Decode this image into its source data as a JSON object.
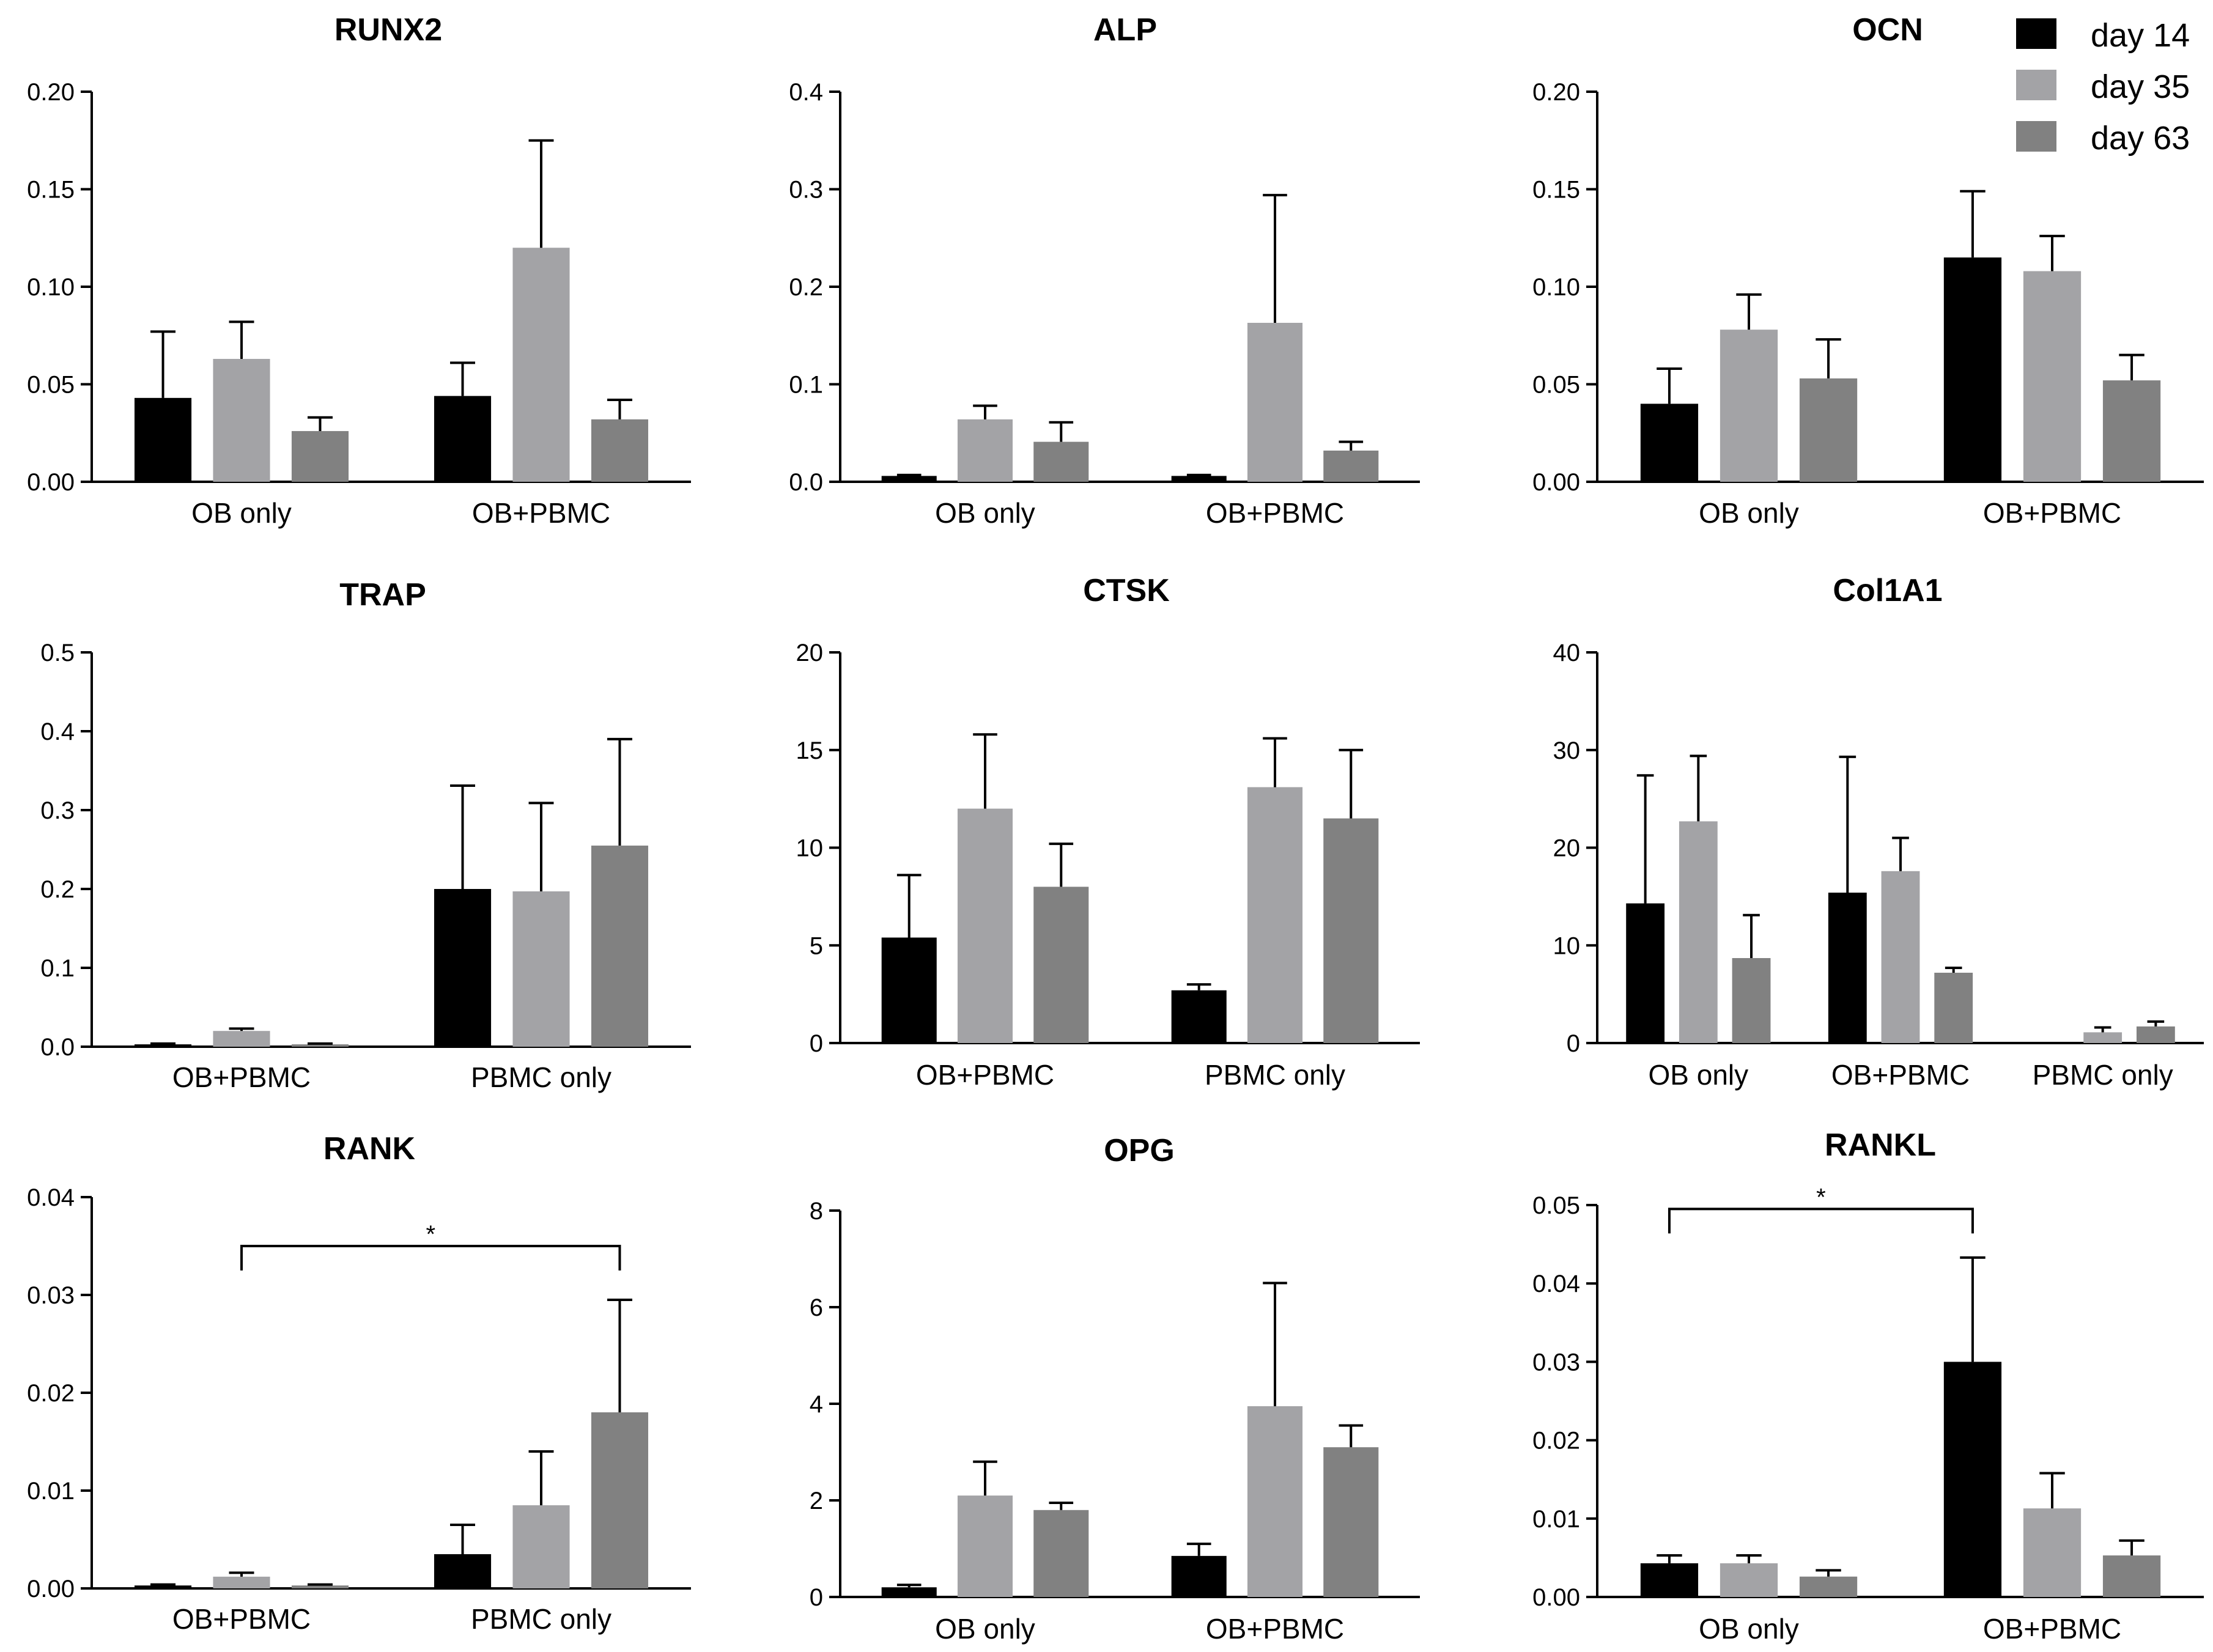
{
  "legend": {
    "items": [
      {
        "label": "day 14",
        "color": "#000000"
      },
      {
        "label": "day 35",
        "color": "#a3a3a6"
      },
      {
        "label": "day 63",
        "color": "#818181"
      }
    ]
  },
  "chart_data": [
    {
      "type": "bar",
      "title": "RUNX2",
      "categories": [
        "OB only",
        "OB+PBMC"
      ],
      "ylim": [
        0,
        0.2
      ],
      "yticks": [
        "0.00",
        "0.05",
        "0.10",
        "0.15",
        "0.20"
      ],
      "series": [
        {
          "name": "day 14",
          "values": [
            0.043,
            0.044
          ],
          "errors": [
            0.034,
            0.017
          ]
        },
        {
          "name": "day 35",
          "values": [
            0.063,
            0.12
          ],
          "errors": [
            0.019,
            0.055
          ]
        },
        {
          "name": "day 63",
          "values": [
            0.026,
            0.032
          ],
          "errors": [
            0.007,
            0.01
          ]
        }
      ]
    },
    {
      "type": "bar",
      "title": "ALP",
      "categories": [
        "OB only",
        "OB+PBMC"
      ],
      "ylim": [
        0,
        0.4
      ],
      "yticks": [
        "0.0",
        "0.1",
        "0.2",
        "0.3",
        "0.4"
      ],
      "series": [
        {
          "name": "day 14",
          "values": [
            0.006,
            0.006
          ],
          "errors": [
            0.001,
            0.001
          ]
        },
        {
          "name": "day 35",
          "values": [
            0.064,
            0.163
          ],
          "errors": [
            0.014,
            0.131
          ]
        },
        {
          "name": "day 63",
          "values": [
            0.041,
            0.032
          ],
          "errors": [
            0.02,
            0.009
          ]
        }
      ]
    },
    {
      "type": "bar",
      "title": "OCN",
      "categories": [
        "OB only",
        "OB+PBMC"
      ],
      "ylim": [
        0,
        0.2
      ],
      "yticks": [
        "0.00",
        "0.05",
        "0.10",
        "0.15",
        "0.20"
      ],
      "series": [
        {
          "name": "day 14",
          "values": [
            0.04,
            0.115
          ],
          "errors": [
            0.018,
            0.034
          ]
        },
        {
          "name": "day 35",
          "values": [
            0.078,
            0.108
          ],
          "errors": [
            0.018,
            0.018
          ]
        },
        {
          "name": "day 63",
          "values": [
            0.053,
            0.052
          ],
          "errors": [
            0.02,
            0.013
          ]
        }
      ]
    },
    {
      "type": "bar",
      "title": "TRAP",
      "categories": [
        "OB+PBMC",
        "PBMC only"
      ],
      "ylim": [
        0,
        0.5
      ],
      "yticks": [
        "0.0",
        "0.1",
        "0.2",
        "0.3",
        "0.4",
        "0.5"
      ],
      "series": [
        {
          "name": "day 14",
          "values": [
            0.003,
            0.2
          ],
          "errors": [
            0.001,
            0.131
          ]
        },
        {
          "name": "day 35",
          "values": [
            0.02,
            0.197
          ],
          "errors": [
            0.003,
            0.112
          ]
        },
        {
          "name": "day 63",
          "values": [
            0.003,
            0.255
          ],
          "errors": [
            0.001,
            0.135
          ]
        }
      ]
    },
    {
      "type": "bar",
      "title": "CTSK",
      "categories": [
        "OB+PBMC",
        "PBMC only"
      ],
      "ylim": [
        0,
        20
      ],
      "yticks": [
        "0",
        "5",
        "10",
        "15",
        "20"
      ],
      "series": [
        {
          "name": "day 14",
          "values": [
            5.4,
            2.7
          ],
          "errors": [
            3.2,
            0.3
          ]
        },
        {
          "name": "day 35",
          "values": [
            12.0,
            13.1
          ],
          "errors": [
            3.8,
            2.5
          ]
        },
        {
          "name": "day 63",
          "values": [
            8.0,
            11.5
          ],
          "errors": [
            2.2,
            3.5
          ]
        }
      ]
    },
    {
      "type": "bar",
      "title": "Col1A1",
      "categories": [
        "OB only",
        "OB+PBMC",
        "PBMC only"
      ],
      "ylim": [
        0,
        40
      ],
      "yticks": [
        "0",
        "10",
        "20",
        "30",
        "40"
      ],
      "series": [
        {
          "name": "day 14",
          "values": [
            14.3,
            15.4,
            0
          ],
          "errors": [
            13.1,
            13.9,
            0
          ]
        },
        {
          "name": "day 35",
          "values": [
            22.7,
            17.6,
            1.1
          ],
          "errors": [
            6.7,
            3.4,
            0.5
          ]
        },
        {
          "name": "day 63",
          "values": [
            8.7,
            7.2,
            1.7
          ],
          "errors": [
            4.4,
            0.5,
            0.5
          ]
        }
      ]
    },
    {
      "type": "bar",
      "title": "RANK",
      "categories": [
        "OB+PBMC",
        "PBMC only"
      ],
      "ylim": [
        0,
        0.04
      ],
      "yticks": [
        "0.00",
        "0.01",
        "0.02",
        "0.03",
        "0.04"
      ],
      "series": [
        {
          "name": "day 14",
          "values": [
            0.0003,
            0.0035
          ],
          "errors": [
            0.0001,
            0.003
          ]
        },
        {
          "name": "day 35",
          "values": [
            0.0012,
            0.0085
          ],
          "errors": [
            0.0004,
            0.0055
          ]
        },
        {
          "name": "day 63",
          "values": [
            0.0003,
            0.018
          ],
          "errors": [
            0.0001,
            0.0115
          ]
        }
      ],
      "annotation": {
        "label": "*",
        "from": [
          "OB+PBMC",
          "day 35"
        ],
        "to": [
          "PBMC only",
          "day 63"
        ],
        "y": 0.035
      }
    },
    {
      "type": "bar",
      "title": "OPG",
      "categories": [
        "OB only",
        "OB+PBMC"
      ],
      "ylim": [
        0,
        8
      ],
      "yticks": [
        "0",
        "2",
        "4",
        "6",
        "8"
      ],
      "series": [
        {
          "name": "day 14",
          "values": [
            0.2,
            0.85
          ],
          "errors": [
            0.05,
            0.25
          ]
        },
        {
          "name": "day 35",
          "values": [
            2.1,
            3.95
          ],
          "errors": [
            0.7,
            2.55
          ]
        },
        {
          "name": "day 63",
          "values": [
            1.8,
            3.1
          ],
          "errors": [
            0.15,
            0.45
          ]
        }
      ]
    },
    {
      "type": "bar",
      "title": "RANKL",
      "categories": [
        "OB only",
        "OB+PBMC"
      ],
      "ylim": [
        0,
        0.05
      ],
      "yticks": [
        "0.00",
        "0.01",
        "0.02",
        "0.03",
        "0.04",
        "0.05"
      ],
      "series": [
        {
          "name": "day 14",
          "values": [
            0.0043,
            0.03
          ],
          "errors": [
            0.001,
            0.0133
          ]
        },
        {
          "name": "day 35",
          "values": [
            0.0043,
            0.0113
          ],
          "errors": [
            0.001,
            0.0045
          ]
        },
        {
          "name": "day 63",
          "values": [
            0.0026,
            0.0053
          ],
          "errors": [
            0.0008,
            0.0019
          ]
        }
      ],
      "annotation": {
        "label": "*",
        "from": [
          "OB only",
          "day 14"
        ],
        "to": [
          "OB+PBMC",
          "day 14"
        ],
        "y": 0.0495
      }
    }
  ]
}
